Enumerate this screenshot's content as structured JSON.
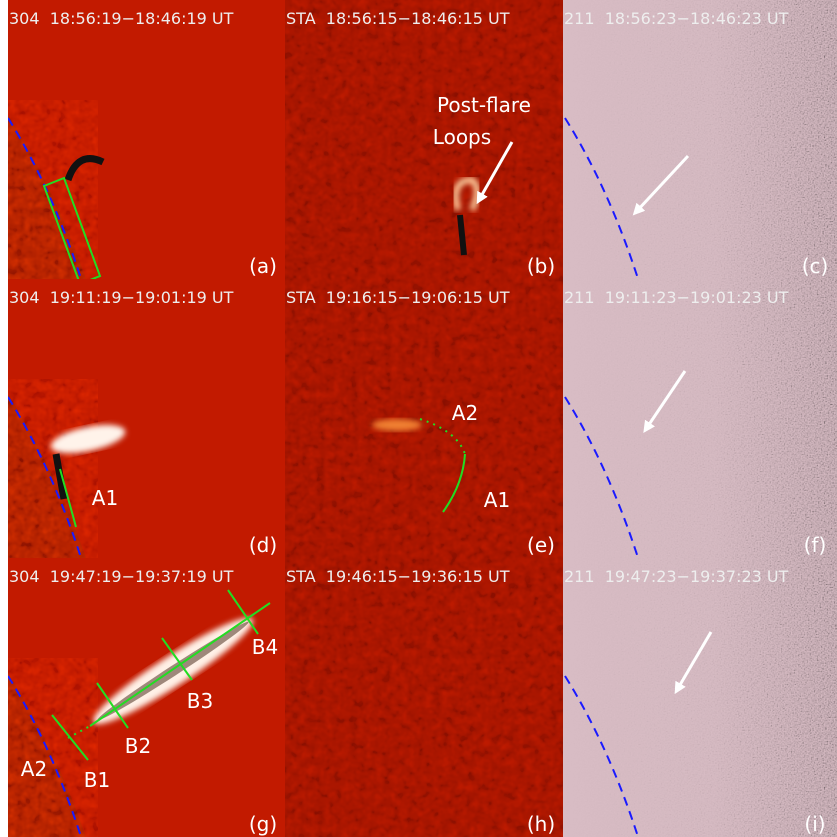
{
  "panels": [
    {
      "header": "304  18:56:19−18:46:19 UT",
      "label": "(a)",
      "annotations": []
    },
    {
      "header": "STA  18:56:15−18:46:15 UT",
      "label": "(b)",
      "annotations": [
        "Post-flare",
        "Loops"
      ]
    },
    {
      "header": "211  18:56:23−18:46:23 UT",
      "label": "(c)",
      "annotations": []
    },
    {
      "header": "304  19:11:19−19:01:19 UT",
      "label": "(d)",
      "annotations": [
        "A1"
      ]
    },
    {
      "header": "STA  19:16:15−19:06:15 UT",
      "label": "(e)",
      "annotations": [
        "A2",
        "A1"
      ]
    },
    {
      "header": "211  19:11:23−19:01:23 UT",
      "label": "(f)",
      "annotations": []
    },
    {
      "header": "304  19:47:19−19:37:19 UT",
      "label": "(g)",
      "annotations": [
        "A2",
        "B1",
        "B2",
        "B3",
        "B4"
      ]
    },
    {
      "header": "STA  19:46:15−19:36:15 UT",
      "label": "(h)",
      "annotations": []
    },
    {
      "header": "211  19:47:23−19:37:23 UT",
      "label": "(i)",
      "annotations": []
    }
  ]
}
